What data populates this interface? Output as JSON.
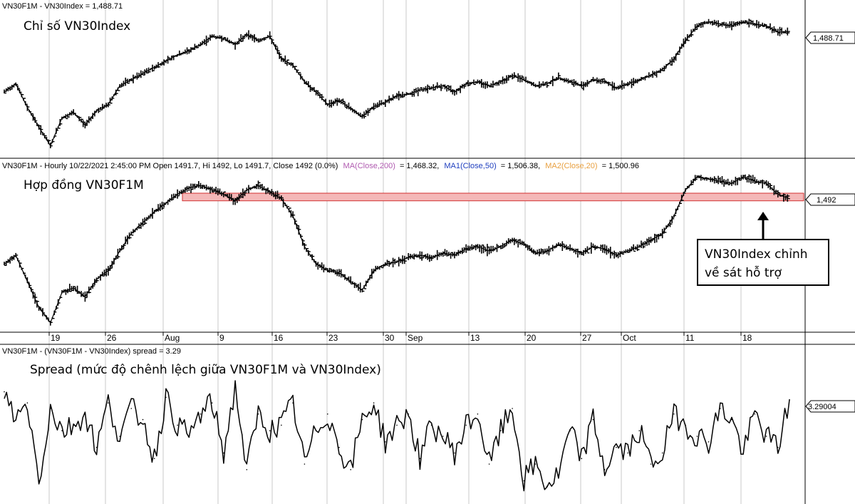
{
  "colors": {
    "background": "#ffffff",
    "grid": "#c8c8c8",
    "price": "#000000",
    "ma200": "#b05ab0",
    "ma50": "#1f3fbf",
    "ma20": "#e8a040",
    "support_zone_fill": "#f4b8b8",
    "support_zone_edge": "#d23232"
  },
  "panels": {
    "index": {
      "header": "VN30F1M - VN30Index = 1,488.71",
      "title": "Chỉ số VN30Index",
      "last_value_tag": "1,488.71"
    },
    "futures": {
      "header_main": "VN30F1M - Hourly 10/22/2021 2:45:00 PM Open 1491.7, Hi 1492, Lo 1491.7, Close 1492 (0.0%)",
      "ma200_label": "MA(Close,200)",
      "ma200_value": "= 1,468.32,",
      "ma50_label": "MA1(Close,50)",
      "ma50_value": "= 1,506.38,",
      "ma20_label": "MA2(Close,20)",
      "ma20_value": "= 1,500.96",
      "title": "Hợp đồng VN30F1M",
      "last_value_tag": "1,492",
      "annotation_line1": "VN30Index chỉnh",
      "annotation_line2": "về sát hỗ trợ"
    },
    "spread": {
      "header": "VN30F1M - (VN30F1M - VN30Index) spread = 3.29",
      "title": "Spread (mức độ chênh lệch giữa VN30F1M và VN30Index)",
      "last_value_tag": "3.29004"
    }
  },
  "x_axis": {
    "labels": [
      "19",
      "26",
      "Aug",
      "9",
      "16",
      "23",
      "30",
      "Sep",
      "13",
      "20",
      "27",
      "Oct",
      "11",
      "18"
    ]
  },
  "chart_data": [
    {
      "type": "line",
      "panel": "index",
      "title": "",
      "series": [
        {
          "name": "VN30Index",
          "x": [
            "2021-07-15",
            "2021-07-16",
            "2021-07-19",
            "2021-07-20",
            "2021-07-21",
            "2021-07-22",
            "2021-07-23",
            "2021-07-26",
            "2021-07-27",
            "2021-07-28",
            "2021-07-29",
            "2021-07-30",
            "2021-08-02",
            "2021-08-03",
            "2021-08-04",
            "2021-08-05",
            "2021-08-06",
            "2021-08-09",
            "2021-08-10",
            "2021-08-11",
            "2021-08-12",
            "2021-08-13",
            "2021-08-16",
            "2021-08-17",
            "2021-08-18",
            "2021-08-19",
            "2021-08-20",
            "2021-08-23",
            "2021-08-24",
            "2021-08-25",
            "2021-08-26",
            "2021-08-27",
            "2021-08-30",
            "2021-08-31",
            "2021-09-06",
            "2021-09-07",
            "2021-09-08",
            "2021-09-09",
            "2021-09-10",
            "2021-09-13",
            "2021-09-14",
            "2021-09-15",
            "2021-09-16",
            "2021-09-17",
            "2021-09-20",
            "2021-09-21",
            "2021-09-22",
            "2021-09-23",
            "2021-09-24",
            "2021-09-27",
            "2021-09-28",
            "2021-09-29",
            "2021-09-30",
            "2021-10-01",
            "2021-10-04",
            "2021-10-05",
            "2021-10-06",
            "2021-10-07",
            "2021-10-08",
            "2021-10-11",
            "2021-10-12",
            "2021-10-13",
            "2021-10-14",
            "2021-10-15",
            "2021-10-18",
            "2021-10-19",
            "2021-10-20",
            "2021-10-21",
            "2021-10-22"
          ],
          "values": [
            1430,
            1438,
            1415,
            1396,
            1378,
            1405,
            1410,
            1398,
            1412,
            1418,
            1436,
            1442,
            1448,
            1454,
            1460,
            1466,
            1470,
            1476,
            1484,
            1482,
            1476,
            1486,
            1480,
            1484,
            1462,
            1456,
            1440,
            1430,
            1418,
            1422,
            1414,
            1406,
            1416,
            1420,
            1426,
            1428,
            1432,
            1434,
            1436,
            1430,
            1438,
            1440,
            1436,
            1440,
            1446,
            1442,
            1436,
            1438,
            1444,
            1440,
            1436,
            1442,
            1440,
            1434,
            1438,
            1442,
            1446,
            1452,
            1462,
            1480,
            1494,
            1498,
            1496,
            1494,
            1498,
            1496,
            1494,
            1488,
            1488.71
          ]
        }
      ]
    },
    {
      "type": "line",
      "panel": "futures",
      "title": "",
      "support_zone": [
        1490,
        1497
      ],
      "series": [
        {
          "name": "VN30F1M",
          "x": [
            "2021-07-15",
            "2021-07-16",
            "2021-07-19",
            "2021-07-20",
            "2021-07-21",
            "2021-07-22",
            "2021-07-23",
            "2021-07-26",
            "2021-07-27",
            "2021-07-28",
            "2021-07-29",
            "2021-07-30",
            "2021-08-02",
            "2021-08-03",
            "2021-08-04",
            "2021-08-05",
            "2021-08-06",
            "2021-08-09",
            "2021-08-10",
            "2021-08-11",
            "2021-08-12",
            "2021-08-13",
            "2021-08-16",
            "2021-08-17",
            "2021-08-18",
            "2021-08-19",
            "2021-08-20",
            "2021-08-23",
            "2021-08-24",
            "2021-08-25",
            "2021-08-26",
            "2021-08-27",
            "2021-08-30",
            "2021-08-31",
            "2021-09-06",
            "2021-09-07",
            "2021-09-08",
            "2021-09-09",
            "2021-09-10",
            "2021-09-13",
            "2021-09-14",
            "2021-09-15",
            "2021-09-16",
            "2021-09-17",
            "2021-09-20",
            "2021-09-21",
            "2021-09-22",
            "2021-09-23",
            "2021-09-24",
            "2021-09-27",
            "2021-09-28",
            "2021-09-29",
            "2021-09-30",
            "2021-10-01",
            "2021-10-04",
            "2021-10-05",
            "2021-10-06",
            "2021-10-07",
            "2021-10-08",
            "2021-10-11",
            "2021-10-12",
            "2021-10-13",
            "2021-10-14",
            "2021-10-15",
            "2021-10-18",
            "2021-10-19",
            "2021-10-20",
            "2021-10-21",
            "2021-10-22"
          ],
          "values": [
            1432,
            1440,
            1416,
            1392,
            1378,
            1406,
            1410,
            1402,
            1418,
            1426,
            1444,
            1460,
            1470,
            1480,
            1488,
            1496,
            1502,
            1504,
            1500,
            1496,
            1490,
            1500,
            1504,
            1498,
            1492,
            1476,
            1448,
            1432,
            1426,
            1424,
            1416,
            1408,
            1426,
            1432,
            1434,
            1438,
            1440,
            1438,
            1442,
            1440,
            1446,
            1448,
            1444,
            1448,
            1454,
            1450,
            1442,
            1444,
            1450,
            1446,
            1442,
            1448,
            1446,
            1440,
            1444,
            1448,
            1454,
            1460,
            1476,
            1500,
            1512,
            1510,
            1508,
            1506,
            1512,
            1508,
            1506,
            1496,
            1492
          ]
        }
      ]
    },
    {
      "type": "line",
      "panel": "spread",
      "title": "",
      "series": [
        {
          "name": "(VN30F1M - VN30Index) spread",
          "x": [
            "2021-07-15",
            "2021-07-16",
            "2021-07-19",
            "2021-07-20",
            "2021-07-21",
            "2021-07-22",
            "2021-07-23",
            "2021-07-26",
            "2021-07-27",
            "2021-07-28",
            "2021-07-29",
            "2021-07-30",
            "2021-08-02",
            "2021-08-03",
            "2021-08-04",
            "2021-08-05",
            "2021-08-06",
            "2021-08-09",
            "2021-08-10",
            "2021-08-11",
            "2021-08-12",
            "2021-08-13",
            "2021-08-16",
            "2021-08-17",
            "2021-08-18",
            "2021-08-19",
            "2021-08-20",
            "2021-08-23",
            "2021-08-24",
            "2021-08-25",
            "2021-08-26",
            "2021-08-27",
            "2021-08-30",
            "2021-08-31",
            "2021-09-06",
            "2021-09-07",
            "2021-09-08",
            "2021-09-09",
            "2021-09-10",
            "2021-09-13",
            "2021-09-14",
            "2021-09-15",
            "2021-09-16",
            "2021-09-17",
            "2021-09-20",
            "2021-09-21",
            "2021-09-22",
            "2021-09-23",
            "2021-09-24",
            "2021-09-27",
            "2021-09-28",
            "2021-09-29",
            "2021-09-30",
            "2021-10-01",
            "2021-10-04",
            "2021-10-05",
            "2021-10-06",
            "2021-10-07",
            "2021-10-08",
            "2021-10-11",
            "2021-10-12",
            "2021-10-13",
            "2021-10-14",
            "2021-10-15",
            "2021-10-18",
            "2021-10-19",
            "2021-10-20",
            "2021-10-21",
            "2021-10-22"
          ],
          "values": [
            4.0,
            1.5,
            3.0,
            -4.0,
            2.5,
            0.5,
            1.0,
            2.0,
            -1.0,
            3.0,
            0.0,
            2.5,
            1.5,
            -2.0,
            3.5,
            1.0,
            0.0,
            2.0,
            3.0,
            -1.5,
            4.5,
            -3.0,
            2.0,
            0.5,
            1.0,
            3.0,
            -2.5,
            0.5,
            2.0,
            -1.0,
            -3.0,
            1.5,
            3.0,
            -0.5,
            1.0,
            2.0,
            -2.0,
            1.0,
            0.0,
            -1.5,
            1.0,
            2.0,
            -2.5,
            0.5,
            2.5,
            -4.0,
            -2.5,
            -4.5,
            -3.5,
            0.5,
            -2.0,
            1.5,
            -3.0,
            -1.0,
            -1.5,
            0.5,
            -2.5,
            -1.5,
            2.0,
            1.0,
            0.0,
            -0.5,
            2.5,
            1.5,
            -1.5,
            2.0,
            0.0,
            -1.0,
            3.29
          ]
        }
      ]
    }
  ]
}
